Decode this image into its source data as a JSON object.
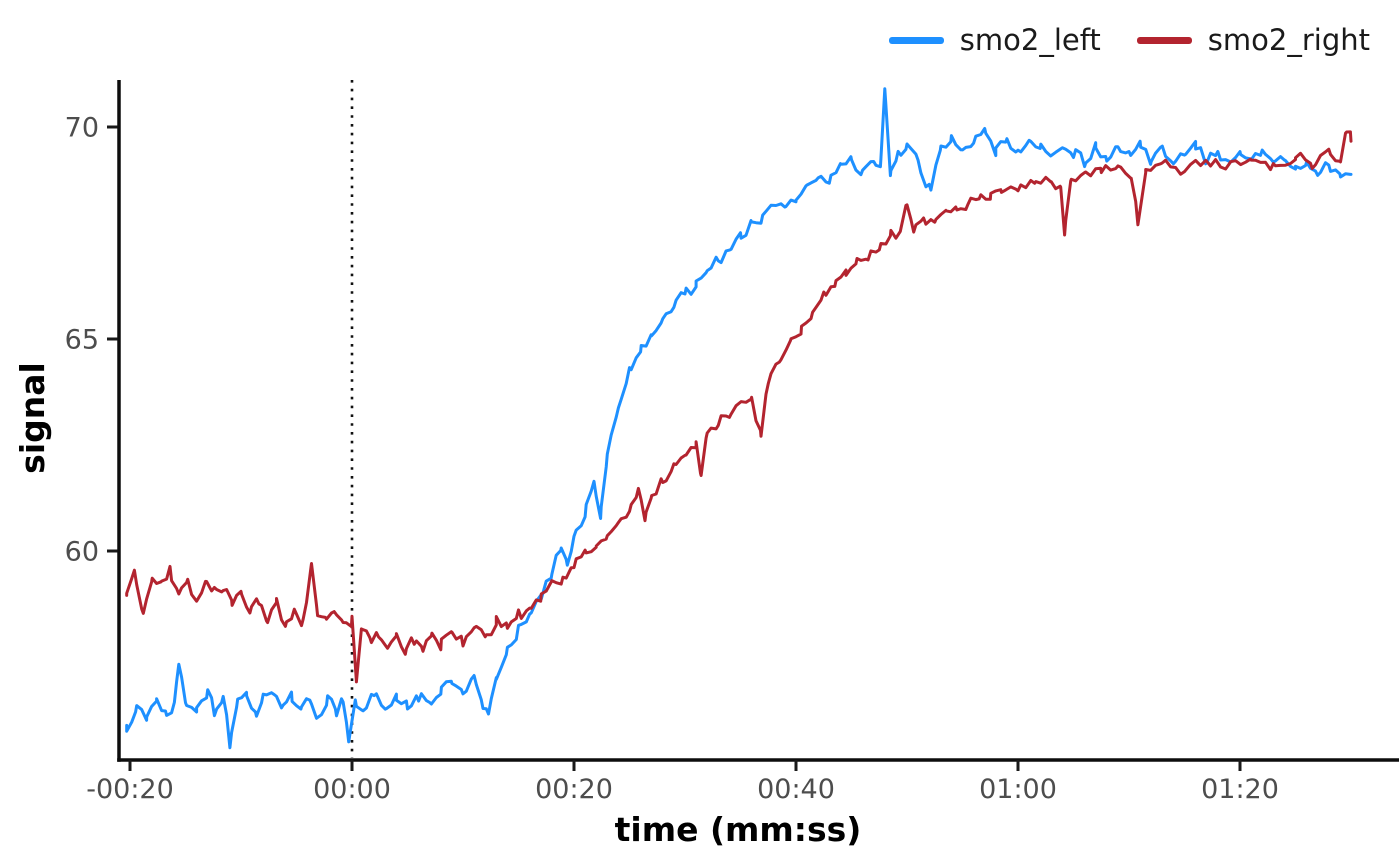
{
  "chart_data": {
    "type": "line",
    "title": "",
    "xlabel": "time (mm:ss)",
    "ylabel": "signal",
    "x_unit": "seconds relative to 00:00",
    "xlim": [
      -20.3,
      90
    ],
    "ylim": [
      55.1,
      71.1
    ],
    "grid": false,
    "legend_position": "top-right",
    "sample_step": 0.45,
    "x_ticks": [
      {
        "t": -20,
        "label": "-00:20"
      },
      {
        "t": 0,
        "label": "00:00"
      },
      {
        "t": 20,
        "label": "00:20"
      },
      {
        "t": 40,
        "label": "00:40"
      },
      {
        "t": 60,
        "label": "01:00"
      },
      {
        "t": 80,
        "label": "01:20"
      }
    ],
    "y_ticks": [
      {
        "v": 70,
        "label": "70"
      },
      {
        "v": 65,
        "label": "65"
      },
      {
        "v": 60,
        "label": "60"
      }
    ],
    "annotations": [
      {
        "type": "vline",
        "x": 0,
        "style": "dotted",
        "color": "#111111"
      }
    ],
    "series": [
      {
        "name": "smo2_left",
        "color": "#1e90ff",
        "noise": 0.17,
        "points": [
          [
            -20.3,
            55.9
          ],
          [
            -19.5,
            56.3
          ],
          [
            -18.5,
            56.1
          ],
          [
            -17.6,
            56.5
          ],
          [
            -16.8,
            56.2
          ],
          [
            -16,
            56.4
          ],
          [
            -15.6,
            57.4
          ],
          [
            -15,
            56.5
          ],
          [
            -14,
            56.3
          ],
          [
            -13,
            56.7
          ],
          [
            -12.4,
            56.2
          ],
          [
            -11.6,
            56.6
          ],
          [
            -11,
            55.4
          ],
          [
            -10.3,
            56.4
          ],
          [
            -9.5,
            56.6
          ],
          [
            -8.7,
            56.2
          ],
          [
            -8,
            56.5
          ],
          [
            -7,
            56.7
          ],
          [
            -6.2,
            56.3
          ],
          [
            -5.4,
            56.6
          ],
          [
            -4.6,
            56.2
          ],
          [
            -3.8,
            56.5
          ],
          [
            -3,
            56.1
          ],
          [
            -2.2,
            56.5
          ],
          [
            -1.5,
            56.2
          ],
          [
            -0.8,
            56.5
          ],
          [
            -0.3,
            55.5
          ],
          [
            0.3,
            56.4
          ],
          [
            1,
            56.2
          ],
          [
            2,
            56.6
          ],
          [
            3,
            56.3
          ],
          [
            4,
            56.5
          ],
          [
            5,
            56.3
          ],
          [
            6,
            56.6
          ],
          [
            7,
            56.4
          ],
          [
            8,
            56.7
          ],
          [
            9,
            56.9
          ],
          [
            10,
            56.7
          ],
          [
            11,
            57.1
          ],
          [
            11.8,
            56.4
          ],
          [
            12.3,
            56.0
          ],
          [
            13,
            57.1
          ],
          [
            14,
            57.6
          ],
          [
            15,
            58.1
          ],
          [
            16,
            58.5
          ],
          [
            17,
            58.9
          ],
          [
            18,
            59.5
          ],
          [
            18.8,
            60.1
          ],
          [
            19.4,
            59.7
          ],
          [
            20,
            60.3
          ],
          [
            21,
            60.9
          ],
          [
            21.8,
            61.6
          ],
          [
            22.4,
            60.9
          ],
          [
            23,
            62.3
          ],
          [
            24,
            63.4
          ],
          [
            25,
            64.2
          ],
          [
            26,
            64.7
          ],
          [
            27,
            65.1
          ],
          [
            28,
            65.5
          ],
          [
            29,
            65.8
          ],
          [
            30,
            66.1
          ],
          [
            31,
            66.3
          ],
          [
            32,
            66.6
          ],
          [
            33,
            66.9
          ],
          [
            34,
            67.1
          ],
          [
            35,
            67.4
          ],
          [
            36,
            67.7
          ],
          [
            37,
            67.8
          ],
          [
            38,
            68.2
          ],
          [
            39,
            68.1
          ],
          [
            40,
            68.3
          ],
          [
            41,
            68.6
          ],
          [
            42,
            68.9
          ],
          [
            43,
            68.7
          ],
          [
            44,
            69.1
          ],
          [
            45,
            69.2
          ],
          [
            46,
            68.9
          ],
          [
            47,
            69.2
          ],
          [
            47.6,
            69.0
          ],
          [
            48,
            71.0
          ],
          [
            48.5,
            68.9
          ],
          [
            49.2,
            69.4
          ],
          [
            50,
            69.6
          ],
          [
            51,
            69.2
          ],
          [
            52,
            68.5
          ],
          [
            53,
            69.5
          ],
          [
            54,
            69.7
          ],
          [
            55,
            69.4
          ],
          [
            56,
            69.7
          ],
          [
            57,
            69.9
          ],
          [
            58,
            69.4
          ],
          [
            59,
            69.7
          ],
          [
            60,
            69.4
          ],
          [
            61,
            69.7
          ],
          [
            62,
            69.5
          ],
          [
            63,
            69.3
          ],
          [
            64,
            69.6
          ],
          [
            65,
            69.4
          ],
          [
            66,
            69.2
          ],
          [
            67,
            69.5
          ],
          [
            68,
            69.2
          ],
          [
            69,
            69.5
          ],
          [
            70,
            69.3
          ],
          [
            71,
            69.6
          ],
          [
            72,
            69.2
          ],
          [
            73,
            69.5
          ],
          [
            74,
            69.1
          ],
          [
            75,
            69.4
          ],
          [
            76,
            69.5
          ],
          [
            77,
            69.2
          ],
          [
            78,
            69.4
          ],
          [
            79,
            69.1
          ],
          [
            80,
            69.3
          ],
          [
            81,
            69.2
          ],
          [
            82,
            69.5
          ],
          [
            83,
            69.1
          ],
          [
            84,
            69.3
          ],
          [
            85,
            69.0
          ],
          [
            86,
            69.2
          ],
          [
            87,
            68.9
          ],
          [
            88,
            69.1
          ],
          [
            89,
            68.9
          ],
          [
            90,
            68.8
          ]
        ]
      },
      {
        "name": "smo2_right",
        "color": "#b3242f",
        "noise": 0.17,
        "points": [
          [
            -20.3,
            59.0
          ],
          [
            -19.6,
            59.5
          ],
          [
            -18.8,
            58.6
          ],
          [
            -18,
            59.3
          ],
          [
            -17.2,
            59.2
          ],
          [
            -16.4,
            59.5
          ],
          [
            -15.6,
            59.1
          ],
          [
            -14.8,
            59.3
          ],
          [
            -14,
            58.8
          ],
          [
            -13.2,
            59.3
          ],
          [
            -12.4,
            59.0
          ],
          [
            -11.6,
            59.2
          ],
          [
            -10.8,
            58.8
          ],
          [
            -10,
            59.0
          ],
          [
            -9.2,
            58.6
          ],
          [
            -8.4,
            58.9
          ],
          [
            -7.6,
            58.3
          ],
          [
            -6.8,
            58.8
          ],
          [
            -6,
            58.3
          ],
          [
            -5.2,
            58.6
          ],
          [
            -4.4,
            58.3
          ],
          [
            -3.7,
            59.7
          ],
          [
            -3.1,
            58.5
          ],
          [
            -2.4,
            58.4
          ],
          [
            -1.6,
            58.6
          ],
          [
            -0.8,
            58.3
          ],
          [
            0,
            58.3
          ],
          [
            0.4,
            56.9
          ],
          [
            0.9,
            58.2
          ],
          [
            1.6,
            57.9
          ],
          [
            2.4,
            58.1
          ],
          [
            3.2,
            57.7
          ],
          [
            4,
            58.0
          ],
          [
            4.8,
            57.6
          ],
          [
            5.6,
            57.9
          ],
          [
            6.4,
            57.7
          ],
          [
            7.2,
            58.0
          ],
          [
            8,
            57.8
          ],
          [
            9,
            58.1
          ],
          [
            10,
            57.9
          ],
          [
            11,
            58.2
          ],
          [
            12,
            58.0
          ],
          [
            13,
            58.3
          ],
          [
            14,
            58.2
          ],
          [
            15,
            58.5
          ],
          [
            16,
            58.6
          ],
          [
            17,
            58.9
          ],
          [
            18,
            59.2
          ],
          [
            19,
            59.4
          ],
          [
            20,
            59.7
          ],
          [
            21,
            59.9
          ],
          [
            22,
            60.1
          ],
          [
            23,
            60.4
          ],
          [
            24,
            60.7
          ],
          [
            25,
            61.0
          ],
          [
            25.8,
            61.5
          ],
          [
            26.4,
            60.7
          ],
          [
            27,
            61.3
          ],
          [
            28,
            61.7
          ],
          [
            29,
            62.0
          ],
          [
            30,
            62.3
          ],
          [
            31,
            62.5
          ],
          [
            31.4,
            61.8
          ],
          [
            32,
            62.8
          ],
          [
            33,
            63.0
          ],
          [
            34,
            63.2
          ],
          [
            35,
            63.5
          ],
          [
            36,
            63.7
          ],
          [
            36.8,
            62.7
          ],
          [
            37.5,
            64.1
          ],
          [
            38.5,
            64.5
          ],
          [
            39.5,
            64.9
          ],
          [
            40.5,
            65.2
          ],
          [
            41.5,
            65.6
          ],
          [
            42.5,
            66.0
          ],
          [
            43.5,
            66.3
          ],
          [
            44.5,
            66.6
          ],
          [
            45.5,
            66.8
          ],
          [
            46.5,
            67.0
          ],
          [
            47.5,
            67.2
          ],
          [
            48.5,
            67.4
          ],
          [
            49.4,
            67.6
          ],
          [
            50,
            68.2
          ],
          [
            50.6,
            67.5
          ],
          [
            51.5,
            67.8
          ],
          [
            52.5,
            67.9
          ],
          [
            53.5,
            68.0
          ],
          [
            54.5,
            68.1
          ],
          [
            55.5,
            68.2
          ],
          [
            56.5,
            68.3
          ],
          [
            57.5,
            68.4
          ],
          [
            58.5,
            68.5
          ],
          [
            60,
            68.6
          ],
          [
            61.5,
            68.7
          ],
          [
            63,
            68.8
          ],
          [
            63.8,
            68.6
          ],
          [
            64.2,
            67.5
          ],
          [
            64.8,
            68.7
          ],
          [
            66,
            68.9
          ],
          [
            67.5,
            69.0
          ],
          [
            69,
            69.0
          ],
          [
            70.2,
            68.9
          ],
          [
            70.8,
            67.7
          ],
          [
            71.5,
            69.0
          ],
          [
            73,
            69.1
          ],
          [
            75,
            69.0
          ],
          [
            77,
            69.2
          ],
          [
            79,
            69.1
          ],
          [
            81,
            69.2
          ],
          [
            83,
            69.1
          ],
          [
            85,
            69.3
          ],
          [
            86.5,
            69.1
          ],
          [
            88,
            69.5
          ],
          [
            89,
            69.2
          ],
          [
            89.6,
            70.0
          ],
          [
            90,
            69.7
          ]
        ]
      }
    ]
  }
}
